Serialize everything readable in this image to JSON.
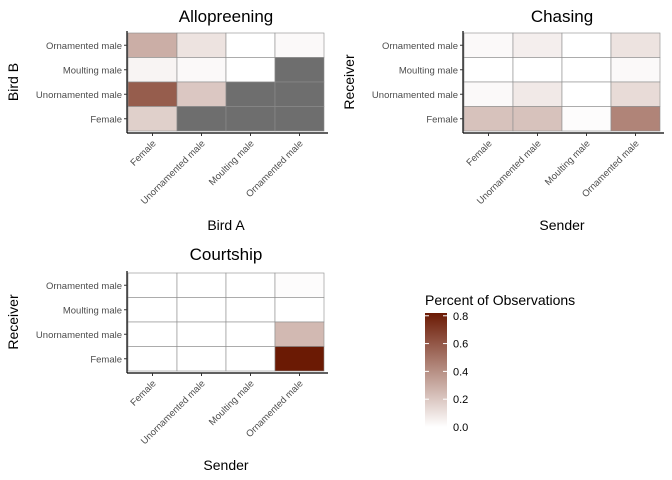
{
  "chart_data": [
    {
      "type": "heatmap",
      "title": "Allopreening",
      "xlabel": "Bird A",
      "ylabel": "Bird B",
      "x_categories": [
        "Female",
        "Unornamented male",
        "Moulting male",
        "Ornamented male"
      ],
      "y_categories": [
        "Ornamented male",
        "Moulting male",
        "Unornamented male",
        "Female"
      ],
      "values": [
        [
          0.29,
          0.1,
          0.0,
          0.02
        ],
        [
          0.04,
          0.02,
          0.0,
          null
        ],
        [
          0.58,
          0.2,
          null,
          null
        ],
        [
          0.17,
          null,
          null,
          null
        ]
      ],
      "grid": false
    },
    {
      "type": "heatmap",
      "title": "Chasing",
      "xlabel": "Sender",
      "ylabel": "Receiver",
      "x_categories": [
        "Female",
        "Unornamented male",
        "Moulting male",
        "Ornamented male"
      ],
      "y_categories": [
        "Ornamented male",
        "Moulting male",
        "Unornamented male",
        "Female"
      ],
      "values": [
        [
          0.02,
          0.06,
          0.0,
          0.1
        ],
        [
          0.0,
          0.0,
          0.0,
          0.02
        ],
        [
          0.02,
          0.08,
          0.0,
          0.13
        ],
        [
          0.22,
          0.22,
          0.01,
          0.44
        ]
      ],
      "grid": false
    },
    {
      "type": "heatmap",
      "title": "Courtship",
      "xlabel": "Sender",
      "ylabel": "Receiver",
      "x_categories": [
        "Female",
        "Unornamented male",
        "Moulting male",
        "Ornamented male"
      ],
      "y_categories": [
        "Ornamented male",
        "Moulting male",
        "Unornamented male",
        "Female"
      ],
      "values": [
        [
          0.0,
          0.0,
          0.0,
          0.01
        ],
        [
          0.0,
          0.0,
          0.0,
          0.0
        ],
        [
          0.0,
          0.0,
          0.0,
          0.25
        ],
        [
          0.0,
          0.0,
          0.0,
          0.82
        ]
      ],
      "grid": false
    }
  ],
  "legend": {
    "title": "Percent of Observations",
    "ticks": [
      "0.8",
      "0.6",
      "0.4",
      "0.2",
      "0.0"
    ],
    "min": 0,
    "max": 0.82,
    "low_color": "#ffffff",
    "high_color": "#6b1a04",
    "na_color": "#6e6e6e"
  }
}
